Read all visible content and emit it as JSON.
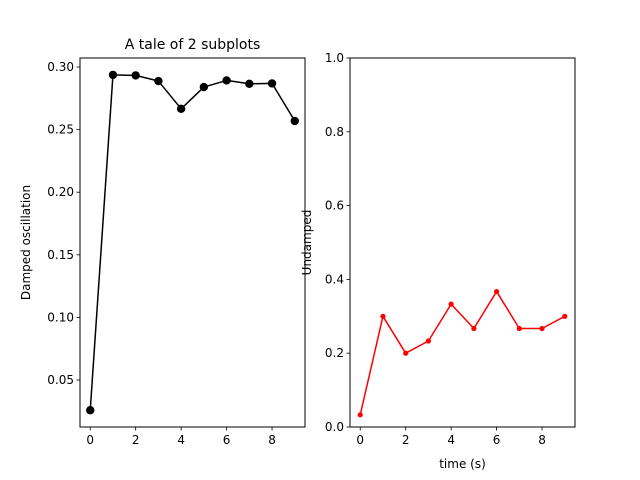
{
  "chart_data": [
    {
      "type": "line",
      "title": "A tale of 2 subplots",
      "xlabel": "",
      "ylabel": "Damped oscillation",
      "x": [
        0,
        1,
        2,
        3,
        4,
        5,
        6,
        7,
        8,
        9
      ],
      "series": [
        {
          "values": [
            0.0259,
            0.2937,
            0.2933,
            0.2888,
            0.2666,
            0.284,
            0.2893,
            0.2866,
            0.2869,
            0.2569
          ],
          "color": "#000000",
          "marker": "circle"
        }
      ],
      "xlim": [
        -0.45,
        9.45
      ],
      "ylim": [
        0.0125,
        0.3072
      ],
      "xticks": [
        0,
        2,
        4,
        6,
        8
      ],
      "yticks": [
        0.05,
        0.1,
        0.15,
        0.2,
        0.25,
        0.3
      ],
      "xtick_labels": [
        "0",
        "2",
        "4",
        "6",
        "8"
      ],
      "ytick_labels": [
        "0.05",
        "0.10",
        "0.15",
        "0.20",
        "0.25",
        "0.30"
      ],
      "grid": false
    },
    {
      "type": "line",
      "title": "",
      "xlabel": "time (s)",
      "ylabel": "Undamped",
      "x": [
        0,
        1,
        2,
        3,
        4,
        5,
        6,
        7,
        8,
        9
      ],
      "series": [
        {
          "values": [
            0.033,
            0.3,
            0.2,
            0.233,
            0.333,
            0.267,
            0.367,
            0.267,
            0.267,
            0.3
          ],
          "color": "#ff0000",
          "marker": "dot"
        }
      ],
      "xlim": [
        -0.45,
        9.45
      ],
      "ylim": [
        0.0,
        1.0
      ],
      "xticks": [
        0,
        2,
        4,
        6,
        8
      ],
      "yticks": [
        0.0,
        0.2,
        0.4,
        0.6,
        0.8,
        1.0
      ],
      "xtick_labels": [
        "0",
        "2",
        "4",
        "6",
        "8"
      ],
      "ytick_labels": [
        "0.0",
        "0.2",
        "0.4",
        "0.6",
        "0.8",
        "1.0"
      ],
      "grid": false
    }
  ]
}
